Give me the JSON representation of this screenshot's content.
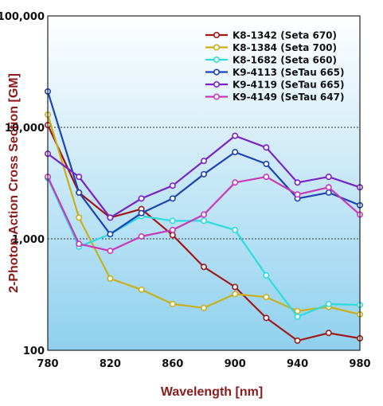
{
  "chart_data": {
    "type": "line",
    "title": "",
    "xlabel": "Wavelength [nm]",
    "ylabel": "2-Photon Action Cross Section [GM]",
    "y_scale": "log",
    "xlim": [
      780,
      980
    ],
    "ylim": [
      100,
      100000
    ],
    "x_ticks": [
      "780",
      "820",
      "860",
      "900",
      "940",
      "980"
    ],
    "y_ticks": [
      {
        "value": 100,
        "label": "100"
      },
      {
        "value": 1000,
        "label": "1,000"
      },
      {
        "value": 10000,
        "label": "10,000"
      },
      {
        "value": 100000,
        "label": "100,000"
      }
    ],
    "gridlines": [
      1000,
      10000
    ],
    "legend_position": "top-right",
    "axis_title_color": "#8b1a1a",
    "background_gradient": [
      "#ffffff",
      "#8fd0ee"
    ],
    "x": [
      780,
      800,
      820,
      840,
      860,
      880,
      900,
      920,
      940,
      960,
      980
    ],
    "series": [
      {
        "name": "K8-1342 (Seta 670)",
        "color": "#a01818",
        "values": [
          10500,
          2600,
          1550,
          1850,
          1080,
          560,
          370,
          195,
          122,
          143,
          128
        ]
      },
      {
        "name": "K8-1384 (Seta 700)",
        "color": "#c8b01a",
        "values": [
          13000,
          1550,
          440,
          350,
          260,
          240,
          320,
          300,
          225,
          245,
          210
        ]
      },
      {
        "name": "K8-1682 (Seta 660)",
        "color": "#2cdcdc",
        "values": [
          3500,
          850,
          1100,
          1600,
          1450,
          1450,
          1200,
          470,
          200,
          260,
          255
        ]
      },
      {
        "name": "K9-4113 (SeTau 665)",
        "color": "#1c44b4",
        "values": [
          21000,
          2600,
          1100,
          1700,
          2300,
          3800,
          6000,
          4700,
          2300,
          2600,
          2000
        ]
      },
      {
        "name": "K9-4119 (SeTau 665)",
        "color": "#7a22c8",
        "values": [
          5800,
          3600,
          1550,
          2300,
          3000,
          5000,
          8400,
          6600,
          3200,
          3600,
          2900
        ]
      },
      {
        "name": "K9-4149 (SeTau 647)",
        "color": "#c838b8",
        "values": [
          3600,
          900,
          780,
          1050,
          1200,
          1650,
          3200,
          3600,
          2500,
          2900,
          1650
        ]
      }
    ]
  }
}
